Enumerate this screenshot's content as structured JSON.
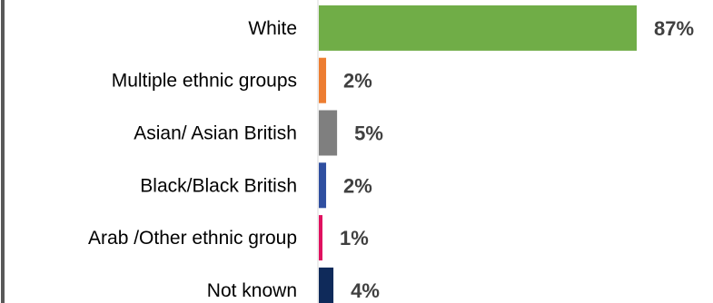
{
  "chart_data": {
    "type": "bar",
    "orientation": "horizontal",
    "categories": [
      "White",
      "Multiple ethnic groups",
      "Asian/ Asian British",
      "Black/Black British",
      "Arab /Other ethnic group",
      "Not known"
    ],
    "values": [
      87,
      2,
      5,
      2,
      1,
      4
    ],
    "value_labels": [
      "87%",
      "2%",
      "5%",
      "2%",
      "1%",
      "4%"
    ],
    "colors": [
      "#70ad47",
      "#ed7d31",
      "#7f7f7f",
      "#2f4fa0",
      "#e0115f",
      "#0f2a5a"
    ],
    "xlim": [
      0,
      100
    ],
    "grid": false,
    "legend": "none"
  }
}
